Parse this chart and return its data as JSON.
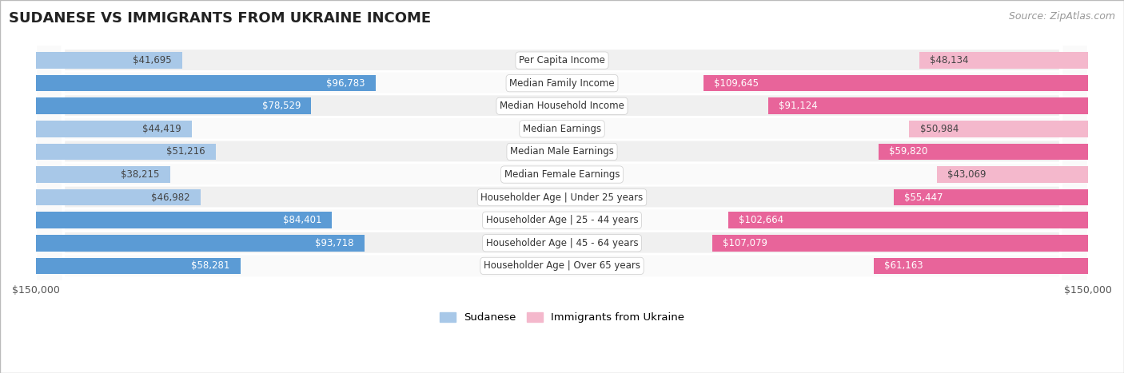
{
  "title": "Sudanese vs Immigrants from Ukraine Income",
  "source": "Source: ZipAtlas.com",
  "categories": [
    "Per Capita Income",
    "Median Family Income",
    "Median Household Income",
    "Median Earnings",
    "Median Male Earnings",
    "Median Female Earnings",
    "Householder Age | Under 25 years",
    "Householder Age | 25 - 44 years",
    "Householder Age | 45 - 64 years",
    "Householder Age | Over 65 years"
  ],
  "sudanese": [
    41695,
    96783,
    78529,
    44419,
    51216,
    38215,
    46982,
    84401,
    93718,
    58281
  ],
  "ukraine": [
    48134,
    109645,
    91124,
    50984,
    59820,
    43069,
    55447,
    102664,
    107079,
    61163
  ],
  "sudanese_color_small": "#a8c8e8",
  "sudanese_color_large": "#5b9bd5",
  "ukraine_color_small": "#f4b8cc",
  "ukraine_color_large": "#e8649a",
  "row_bg_odd": "#f0f0f0",
  "row_bg_even": "#fafafa",
  "xlim": 150000,
  "bar_height": 0.72,
  "label_threshold": 55000,
  "legend_sudanese": "Sudanese",
  "legend_ukraine": "Immigrants from Ukraine",
  "title_fontsize": 13,
  "source_fontsize": 9,
  "bar_label_fontsize": 8.5,
  "category_fontsize": 8.5,
  "axis_label_fontsize": 9
}
